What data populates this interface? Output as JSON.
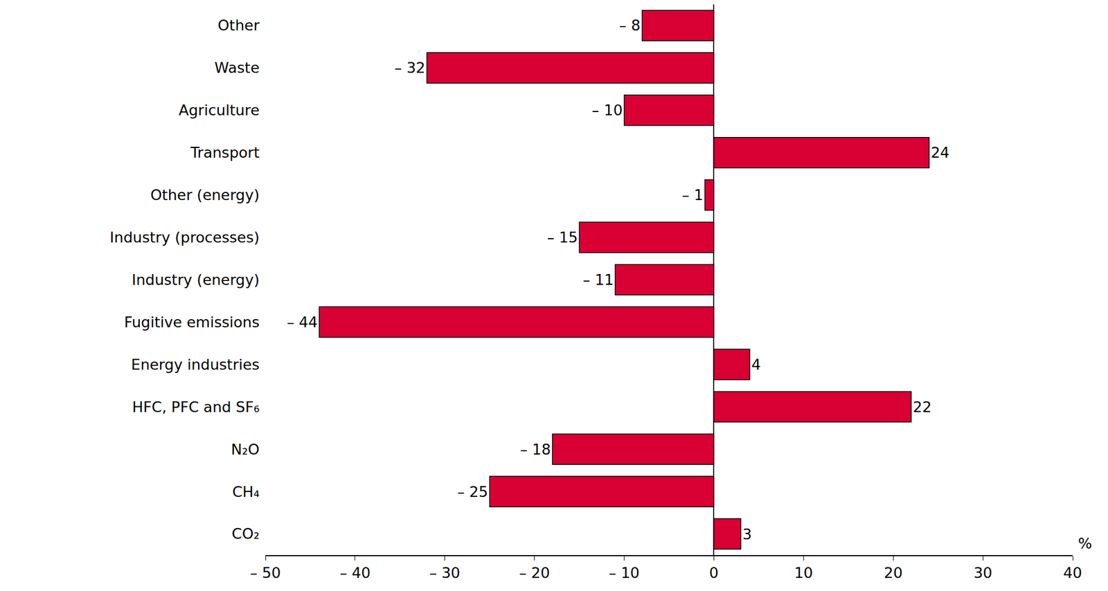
{
  "chart_data": {
    "type": "bar",
    "orientation": "horizontal",
    "categories": [
      "Other",
      "Waste",
      "Agriculture",
      "Transport",
      "Other (energy)",
      "Industry (processes)",
      "Industry (energy)",
      "Fugitive emissions",
      "Energy industries",
      "HFC, PFC and SF₆",
      "N₂O",
      "CH₄",
      "CO₂"
    ],
    "values": [
      -8,
      -32,
      -10,
      24,
      -1,
      -15,
      -11,
      -44,
      4,
      22,
      -18,
      -25,
      3
    ],
    "value_labels": [
      "– 8",
      "– 32",
      "– 10",
      "24",
      "– 1",
      "– 15",
      "– 11",
      "– 44",
      "4",
      "22",
      "– 18",
      "– 25",
      "3"
    ],
    "data_labels": true,
    "color": "#d90033",
    "x_label": "%",
    "xlim": [
      -50,
      40
    ],
    "xticks": [
      {
        "value": -50,
        "label": "– 50"
      },
      {
        "value": -40,
        "label": "– 40"
      },
      {
        "value": -30,
        "label": "– 30"
      },
      {
        "value": -20,
        "label": "– 20"
      },
      {
        "value": -10,
        "label": "– 10"
      },
      0,
      10,
      20,
      30,
      40
    ],
    "grid": false
  }
}
